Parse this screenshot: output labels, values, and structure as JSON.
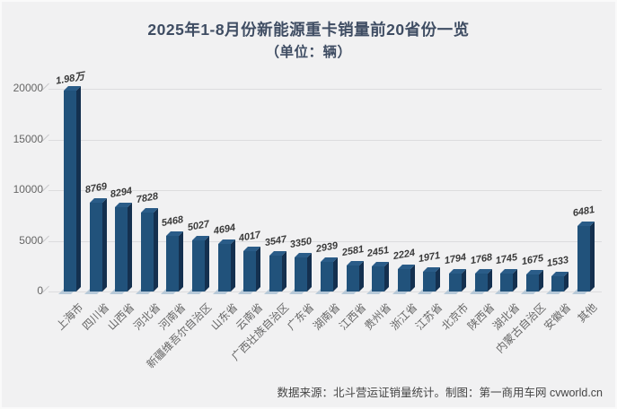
{
  "title": "2025年1-8月份新能源重卡销量前20省份一览",
  "subtitle": "（单位：辆）",
  "footer": "数据来源：北斗营运证销量统计。制图：第一商用车网 cvworld.cn",
  "chart_data": {
    "type": "bar",
    "style": "3d-column",
    "title": "2025年1-8月份新能源重卡销量前20省份一览",
    "subtitle": "（单位：辆）",
    "unit": "辆",
    "categories": [
      "上海市",
      "四川省",
      "山西省",
      "河北省",
      "河南省",
      "新疆维吾尔自治区",
      "山东省",
      "云南省",
      "广西壮族自治区",
      "广东省",
      "湖南省",
      "江西省",
      "贵州省",
      "浙江省",
      "江苏省",
      "北京市",
      "陕西省",
      "湖北省",
      "内蒙古自治区",
      "安徽省",
      "其他"
    ],
    "values": [
      19800,
      8769,
      8294,
      7828,
      5468,
      5027,
      4694,
      4017,
      3547,
      3350,
      2939,
      2581,
      2451,
      2224,
      1971,
      1794,
      1768,
      1745,
      1675,
      1533,
      6481
    ],
    "value_labels": [
      "1.98万",
      "8769",
      "8294",
      "7828",
      "5468",
      "5027",
      "4694",
      "4017",
      "3547",
      "3350",
      "2939",
      "2581",
      "2451",
      "2224",
      "1971",
      "1794",
      "1768",
      "1745",
      "1675",
      "1533",
      "6481"
    ],
    "xlabel": "",
    "ylabel": "",
    "ylim": [
      0,
      20000
    ],
    "yticks": [
      0,
      5000,
      10000,
      15000,
      20000
    ],
    "grid": true,
    "legend_position": "none",
    "colors": {
      "bar_front": "#21527b",
      "bar_side": "#14304f",
      "bar_top": "#2a5c88",
      "bar_foot": "#b7c9d8",
      "gridline": "#dcdcde",
      "axis_text": "#666666",
      "value_label": "#3a3a3a",
      "title_text": "#3f4d63",
      "background": "#f1f1f2"
    }
  }
}
